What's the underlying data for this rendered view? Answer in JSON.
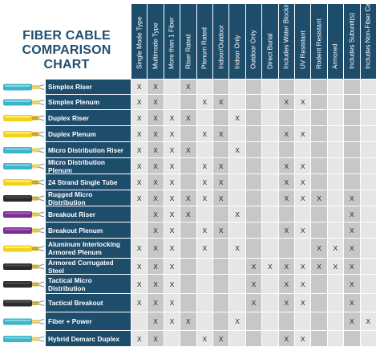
{
  "title": {
    "line1": "FIBER CABLE",
    "line2": "COMPARISON CHART"
  },
  "mark": "X",
  "colors": {
    "header": "#1e4c6b",
    "cell_light": "#e6e6e6",
    "cell_dark": "#c7c7c7",
    "title": "#1f4f71"
  },
  "columns": [
    "Single Mode Type",
    "Multimode Type",
    "More than 1 Fiber",
    "Riser Rated",
    "Plenum Rated",
    "Indoor/Outdoor",
    "Indoor Only",
    "Outdoor Only",
    "Direct Burial",
    "Includes Water Blocking",
    "UV Resistant",
    "Rodent Resistant",
    "Armored",
    "Includes Subunit(s)",
    "Includes Non-Fiber Cable"
  ],
  "rows": [
    {
      "name": "Simplex Riser",
      "thumb": "cable-teal",
      "marks": [
        1,
        1,
        0,
        1,
        0,
        0,
        0,
        0,
        0,
        0,
        0,
        0,
        0,
        0,
        0
      ]
    },
    {
      "name": "Simplex Plenum",
      "thumb": "cable-teal",
      "marks": [
        1,
        1,
        0,
        0,
        1,
        1,
        0,
        0,
        0,
        1,
        1,
        0,
        0,
        0,
        0
      ]
    },
    {
      "name": "Duplex Riser",
      "thumb": "cable-yellow",
      "marks": [
        1,
        1,
        1,
        1,
        0,
        0,
        1,
        0,
        0,
        0,
        0,
        0,
        0,
        0,
        0
      ]
    },
    {
      "name": "Duplex Plenum",
      "thumb": "cable-yellow",
      "marks": [
        1,
        1,
        1,
        0,
        1,
        1,
        0,
        0,
        0,
        1,
        1,
        0,
        0,
        0,
        0
      ]
    },
    {
      "name": "Micro Distribution Riser",
      "thumb": "cable-teal",
      "marks": [
        1,
        1,
        1,
        1,
        0,
        0,
        1,
        0,
        0,
        0,
        0,
        0,
        0,
        0,
        0
      ]
    },
    {
      "name": "Micro Distribution Plenum",
      "thumb": "cable-teal",
      "marks": [
        1,
        1,
        1,
        0,
        1,
        1,
        0,
        0,
        0,
        1,
        1,
        0,
        0,
        0,
        0
      ]
    },
    {
      "name": "24 Strand Single Tube",
      "thumb": "cable-yellow",
      "marks": [
        1,
        1,
        1,
        0,
        1,
        1,
        0,
        0,
        0,
        1,
        1,
        0,
        0,
        0,
        0
      ]
    },
    {
      "name": "Rugged Micro Distribution",
      "thumb": "cable-black",
      "marks": [
        1,
        1,
        1,
        1,
        1,
        1,
        0,
        0,
        0,
        1,
        1,
        1,
        0,
        1,
        0
      ]
    },
    {
      "name": "Breakout Riser",
      "thumb": "cable-purple",
      "marks": [
        0,
        1,
        1,
        1,
        0,
        0,
        1,
        0,
        0,
        0,
        0,
        0,
        0,
        1,
        0
      ]
    },
    {
      "name": "Breakout Plenum",
      "thumb": "cable-purple",
      "marks": [
        0,
        1,
        1,
        0,
        1,
        1,
        0,
        0,
        0,
        1,
        1,
        0,
        0,
        1,
        0
      ]
    },
    {
      "name": "Aluminum Interlocking Armored Plenum",
      "thumb": "cable-yellow",
      "marks": [
        1,
        1,
        1,
        0,
        1,
        0,
        1,
        0,
        0,
        0,
        0,
        1,
        1,
        1,
        0
      ]
    },
    {
      "name": "Armored Corrugated Steel",
      "thumb": "cable-black",
      "marks": [
        1,
        1,
        1,
        0,
        0,
        0,
        0,
        1,
        1,
        1,
        1,
        1,
        1,
        1,
        0
      ]
    },
    {
      "name": "Tactical Micro Distribution",
      "thumb": "cable-black",
      "marks": [
        1,
        1,
        1,
        0,
        0,
        0,
        0,
        1,
        0,
        1,
        1,
        0,
        0,
        1,
        0
      ]
    },
    {
      "name": "Tactical Breakout",
      "thumb": "cable-black",
      "marks": [
        1,
        1,
        1,
        0,
        0,
        0,
        0,
        1,
        0,
        1,
        1,
        0,
        0,
        1,
        0
      ]
    },
    {
      "name": "Fiber + Power",
      "thumb": "cable-teal",
      "marks": [
        0,
        1,
        1,
        1,
        0,
        0,
        1,
        0,
        0,
        0,
        0,
        0,
        0,
        1,
        1
      ]
    },
    {
      "name": "Hybrid Demarc Duplex",
      "thumb": "cable-teal",
      "marks": [
        1,
        1,
        0,
        0,
        1,
        1,
        0,
        0,
        0,
        1,
        1,
        0,
        0,
        0,
        0
      ]
    }
  ]
}
